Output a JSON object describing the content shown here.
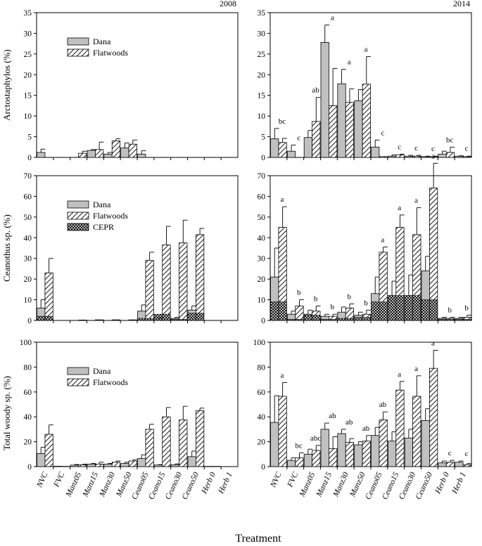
{
  "years": [
    "2008",
    "2014"
  ],
  "xlabel": "Treatment",
  "categories": [
    "NVC",
    "FVC",
    "Manz05",
    "Manz15",
    "Manz30",
    "Manz50",
    "Ceano05",
    "Ceano15",
    "Ceano30",
    "Ceano50",
    "Herb 0",
    "Herb 1"
  ],
  "colors": {
    "dana": "#c0c0c0",
    "bar_edge": "#000000",
    "flatwoods": "#ffffff",
    "cepr_fill": "#ffffff",
    "cepr_hatch": "#000000"
  },
  "chart_data": [
    {
      "type": "bar",
      "panel": "top-left",
      "year": "2008",
      "ylabel": "Arctostaphylos (%)",
      "ylim": [
        0,
        35
      ],
      "yticks": [
        0,
        5,
        10,
        15,
        20,
        25,
        30,
        35
      ],
      "legend": [
        "Dana",
        "Flatwoods"
      ],
      "legend_position": "top-left",
      "series": [
        {
          "name": "Dana",
          "values": [
            1.2,
            0,
            0,
            1.7,
            0.8,
            2.3,
            0.8,
            0,
            0,
            0,
            0,
            0
          ],
          "errors": [
            0.8,
            0,
            0,
            0.2,
            0.4,
            1.2,
            0.8,
            0,
            0,
            0,
            0,
            0
          ]
        },
        {
          "name": "Flatwoods",
          "values": [
            0,
            0,
            1,
            1.9,
            4,
            3.2,
            0,
            0,
            0,
            0,
            0,
            0
          ],
          "errors": [
            0,
            0,
            0.5,
            1.8,
            0.5,
            1,
            0,
            0,
            0,
            0,
            0,
            0
          ]
        }
      ],
      "significance": []
    },
    {
      "type": "bar",
      "panel": "top-right",
      "year": "2014",
      "ylabel": "",
      "ylim": [
        0,
        35
      ],
      "yticks": [
        0,
        5,
        10,
        15,
        20,
        25,
        30,
        35
      ],
      "series": [
        {
          "name": "Dana",
          "values": [
            4.5,
            1.5,
            4.8,
            27.8,
            17.8,
            13.7,
            2.5,
            0.3,
            0.3,
            0.2,
            0.8,
            0.3
          ],
          "errors": [
            2.5,
            1.5,
            1.7,
            4.2,
            3.5,
            2.7,
            1.7,
            0.3,
            0.2,
            0.1,
            0.7,
            0.1
          ]
        },
        {
          "name": "Flatwoods",
          "values": [
            3.6,
            0,
            8.7,
            12.5,
            13.3,
            17.7,
            0.2,
            0.6,
            0.3,
            0.2,
            1.2,
            0.2
          ],
          "errors": [
            1,
            0,
            5.8,
            9,
            3.3,
            6.7,
            0,
            0.2,
            0.2,
            0.1,
            1.3,
            0.1
          ]
        }
      ],
      "significance": [
        "bc",
        "c",
        "ab",
        "a",
        "a",
        "a",
        "c",
        "c",
        "c",
        "c",
        "bc",
        "c"
      ]
    },
    {
      "type": "bar",
      "panel": "middle-left",
      "year": "2008",
      "ylabel": "Ceanothus sp. (%)",
      "ylim": [
        0,
        70
      ],
      "yticks": [
        0,
        10,
        20,
        30,
        40,
        50,
        60,
        70
      ],
      "legend": [
        "Dana",
        "Flatwoods",
        "CEPR"
      ],
      "legend_position": "top-left",
      "series": [
        {
          "name": "Dana",
          "values": [
            6,
            0,
            0,
            0,
            0,
            0,
            4.5,
            0.8,
            1,
            5,
            0,
            0
          ],
          "errors": [
            4,
            0,
            0,
            0,
            0,
            0,
            3,
            0.3,
            0.5,
            2,
            0,
            0
          ]
        },
        {
          "name": "Flatwoods",
          "values": [
            23,
            0,
            0.2,
            0.3,
            0.3,
            0.3,
            29,
            36.5,
            37.5,
            41.5,
            0,
            0
          ],
          "errors": [
            7,
            0,
            0,
            0,
            0,
            0,
            4,
            9,
            11,
            3,
            0,
            0
          ]
        },
        {
          "name": "CEPR",
          "values": [
            2,
            0,
            0,
            0,
            0,
            0,
            1,
            3,
            0.5,
            3.5,
            0,
            0
          ]
        }
      ],
      "significance": []
    },
    {
      "type": "bar",
      "panel": "middle-right",
      "year": "2014",
      "ylabel": "",
      "ylim": [
        0,
        70
      ],
      "yticks": [
        0,
        10,
        20,
        30,
        40,
        50,
        60,
        70
      ],
      "series": [
        {
          "name": "Dana",
          "values": [
            21,
            3,
            3,
            2,
            4,
            2.5,
            13,
            12,
            12,
            24,
            1,
            1
          ],
          "errors": [
            14,
            1.5,
            2,
            1,
            2.5,
            1.5,
            8,
            7,
            10,
            7,
            0.5,
            0.5
          ]
        },
        {
          "name": "Flatwoods",
          "values": [
            45,
            7,
            4.5,
            2,
            6,
            3,
            33,
            45,
            41.5,
            64,
            1,
            1.5
          ],
          "errors": [
            10,
            3,
            2.5,
            1,
            2,
            2,
            2.5,
            6,
            13,
            12,
            0.5,
            1
          ]
        },
        {
          "name": "CEPR",
          "values": [
            9,
            0.5,
            2.5,
            0.5,
            1,
            1.5,
            9,
            12,
            12,
            10,
            0.5,
            0.5
          ]
        }
      ],
      "significance": [
        "a",
        "b",
        "b",
        "b",
        "b",
        "b",
        "a",
        "a",
        "a",
        "a",
        "b",
        "b"
      ]
    },
    {
      "type": "bar",
      "panel": "bottom-left",
      "year": "2008",
      "ylabel": "Total woody sp. (%)",
      "ylim": [
        0,
        100
      ],
      "yticks": [
        0,
        20,
        40,
        60,
        80,
        100
      ],
      "legend": [
        "Dana",
        "Flatwoods"
      ],
      "legend_position": "top-left",
      "series": [
        {
          "name": "Dana",
          "values": [
            10.5,
            0.3,
            1.2,
            2,
            2,
            2.5,
            6.5,
            1.3,
            1.5,
            8,
            0.2,
            0
          ],
          "errors": [
            5,
            0,
            0.5,
            0.5,
            0.5,
            1,
            3,
            0.3,
            0.7,
            4.5,
            0,
            0
          ]
        },
        {
          "name": "Flatwoods",
          "values": [
            26,
            0.2,
            1.5,
            2,
            3.5,
            4.5,
            30,
            40,
            37.5,
            45,
            0.2,
            0
          ],
          "errors": [
            7.5,
            0,
            0.5,
            1.5,
            1,
            1,
            4,
            7.5,
            11,
            2,
            0,
            0
          ]
        }
      ],
      "significance": []
    },
    {
      "type": "bar",
      "panel": "bottom-right",
      "year": "2014",
      "ylabel": "",
      "ylim": [
        0,
        100
      ],
      "yticks": [
        0,
        20,
        40,
        60,
        80,
        100
      ],
      "series": [
        {
          "name": "Dana",
          "values": [
            35.5,
            5,
            10,
            30,
            26.5,
            17.5,
            25,
            20.5,
            23,
            37,
            3,
            3.5
          ],
          "errors": [
            21.5,
            2,
            4,
            5,
            3.5,
            2.5,
            6.5,
            7.5,
            7,
            9.5,
            1.5,
            1
          ]
        },
        {
          "name": "Flatwoods",
          "values": [
            56.5,
            7,
            13,
            14.5,
            19.5,
            20.5,
            37.5,
            61.5,
            56.5,
            79,
            3.5,
            1.5
          ],
          "errors": [
            11,
            4,
            4,
            9.5,
            3,
            4.5,
            6.5,
            7,
            16.5,
            14.5,
            1.5,
            1
          ]
        }
      ],
      "significance": [
        "a",
        "bc",
        "abc",
        "ab",
        "ab",
        "ab",
        "ab",
        "a",
        "a",
        "a",
        "c",
        "c"
      ]
    }
  ]
}
